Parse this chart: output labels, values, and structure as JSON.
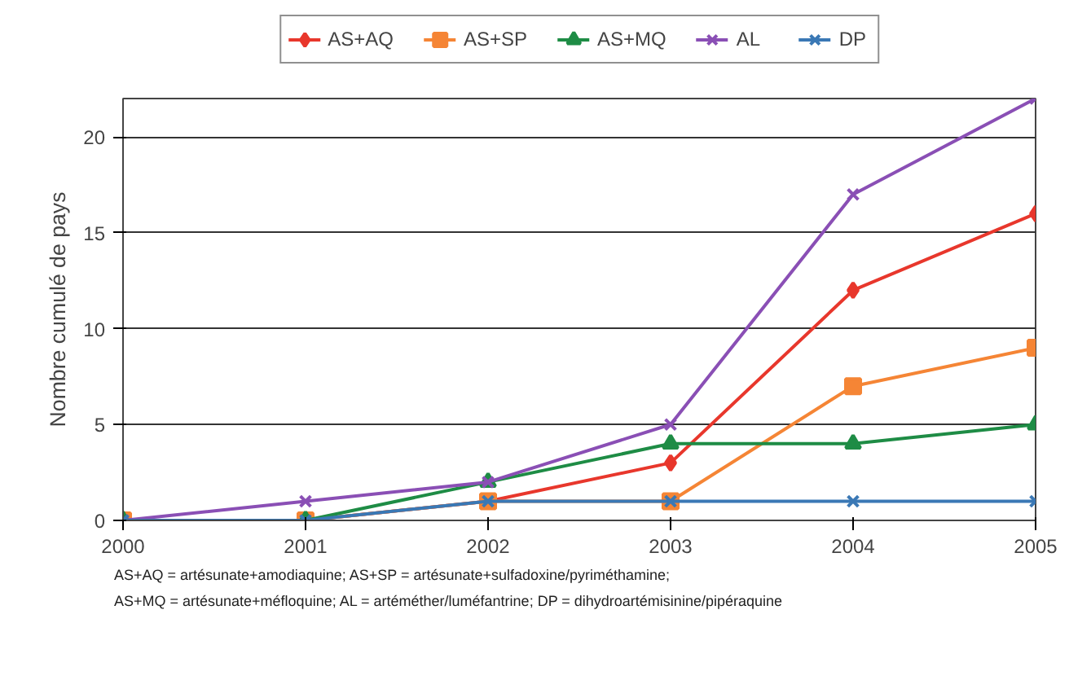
{
  "chart_data": {
    "type": "line",
    "ylabel": "Nombre cumulé de pays",
    "x": [
      2000,
      2001,
      2002,
      2003,
      2004,
      2005
    ],
    "xlim": [
      2000,
      2005
    ],
    "xticks": [
      2000,
      2001,
      2002,
      2003,
      2004,
      2005
    ],
    "ylim": [
      0,
      22
    ],
    "yticks": [
      0,
      5,
      10,
      15,
      20
    ],
    "grid": "y",
    "legend": "top",
    "series": [
      {
        "name": "AS+AQ",
        "color": "#e8372c",
        "marker": "diamond",
        "values": [
          0,
          0,
          1,
          3,
          12,
          16
        ]
      },
      {
        "name": "AS+SP",
        "color": "#f58535",
        "marker": "square",
        "values": [
          0,
          0,
          1,
          1,
          7,
          9
        ]
      },
      {
        "name": "AS+MQ",
        "color": "#1e8c45",
        "marker": "triangle",
        "values": [
          0,
          0,
          2,
          4,
          4,
          5
        ]
      },
      {
        "name": "AL",
        "color": "#8a4fb5",
        "marker": "cross",
        "values": [
          0,
          1,
          2,
          5,
          17,
          22
        ]
      },
      {
        "name": "DP",
        "color": "#3a78b5",
        "marker": "cross",
        "values": [
          0,
          0,
          1,
          1,
          1,
          1
        ]
      }
    ],
    "annotations": [
      "AS+AQ = artésunate+amodiaquine; AS+SP = artésunate+sulfadoxine/pyriméthamine;",
      "AS+MQ = artésunate+méfloquine; AL = artéméther/luméfantrine; DP = dihydroartémisinine/pipéraquine"
    ]
  }
}
